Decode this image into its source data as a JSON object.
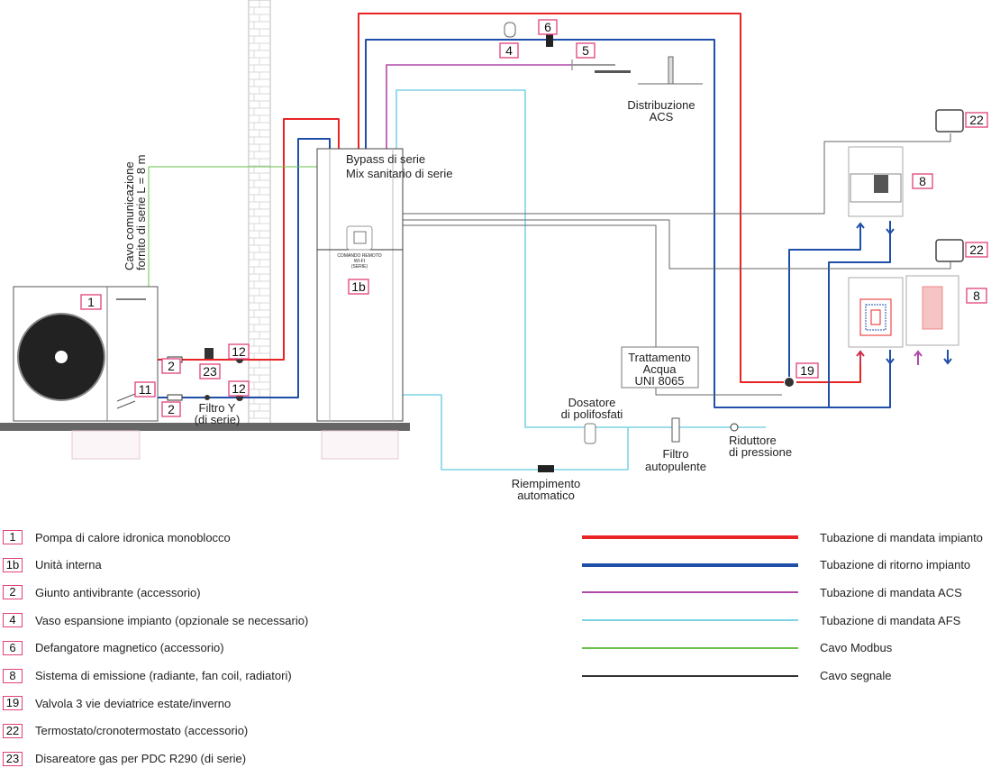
{
  "colors": {
    "supply": "#e82424",
    "return": "#1f4fa8",
    "dhw": "#b04aa8",
    "cold": "#7fd3e6",
    "modbus": "#6ac04a",
    "signal": "#333333",
    "key_border": "#e0407a"
  },
  "diagram": {
    "cable_label_1": "Cavo comunicazione",
    "cable_label_2": "fornito di serie L = 8 m",
    "bypass": "Bypass di serie",
    "mix": "Mix sanitario di serie",
    "remote_1": "COMANDO REMOTO",
    "remote_2": "WI-FI",
    "remote_3": "(SERIE)",
    "dhw_dist_1": "Distribuzione",
    "dhw_dist_2": "ACS",
    "filter_y_1": "Filtro Y",
    "filter_y_2": "(di serie)",
    "treatment_1": "Trattamento",
    "treatment_2": "Acqua",
    "treatment_3": "UNI 8065",
    "dosing_1": "Dosatore",
    "dosing_2": "di polifosfati",
    "selfclean_1": "Filtro",
    "selfclean_2": "autopulente",
    "reducer_1": "Riduttore",
    "reducer_2": "di pressione",
    "autofill_1": "Riempimento",
    "autofill_2": "automatico",
    "tags": {
      "outdoor": "1",
      "indoor": "1b",
      "joint_a": "2",
      "joint_b": "2",
      "degasser": "23",
      "item11": "11",
      "item12_a": "12",
      "item12_b": "12",
      "expansion": "4",
      "dirt": "6",
      "item5": "5",
      "valve3": "19",
      "thermo_a": "22",
      "thermo_b": "22",
      "emit_a": "8",
      "emit_b": "8"
    }
  },
  "legend": {
    "items": [
      {
        "key": "1",
        "label": "Pompa di calore idronica monoblocco"
      },
      {
        "key": "1b",
        "label": "Unità interna"
      },
      {
        "key": "2",
        "label": "Giunto antivibrante (accessorio)"
      },
      {
        "key": "4",
        "label": "Vaso espansione impianto (opzionale se necessario)"
      },
      {
        "key": "6",
        "label": "Defangatore magnetico (accessorio)"
      },
      {
        "key": "8",
        "label": "Sistema di emissione (radiante, fan coil, radiatori)"
      },
      {
        "key": "19",
        "label": "Valvola 3 vie deviatrice estate/inverno"
      },
      {
        "key": "22",
        "label": "Termostato/cronotermostato (accessorio)"
      },
      {
        "key": "23",
        "label": "Disareatore gas per PDC R290 (di serie)"
      }
    ],
    "lines": [
      {
        "label": "Tubazione di mandata impianto",
        "color": "#e82424"
      },
      {
        "label": "Tubazione di ritorno impianto",
        "color": "#1f4fa8"
      },
      {
        "label": "Tubazione di mandata ACS",
        "color": "#b04aa8"
      },
      {
        "label": "Tubazione di mandata AFS",
        "color": "#7fd3e6"
      },
      {
        "label": "Cavo Modbus",
        "color": "#6ac04a"
      },
      {
        "label": "Cavo segnale",
        "color": "#333333"
      }
    ]
  }
}
